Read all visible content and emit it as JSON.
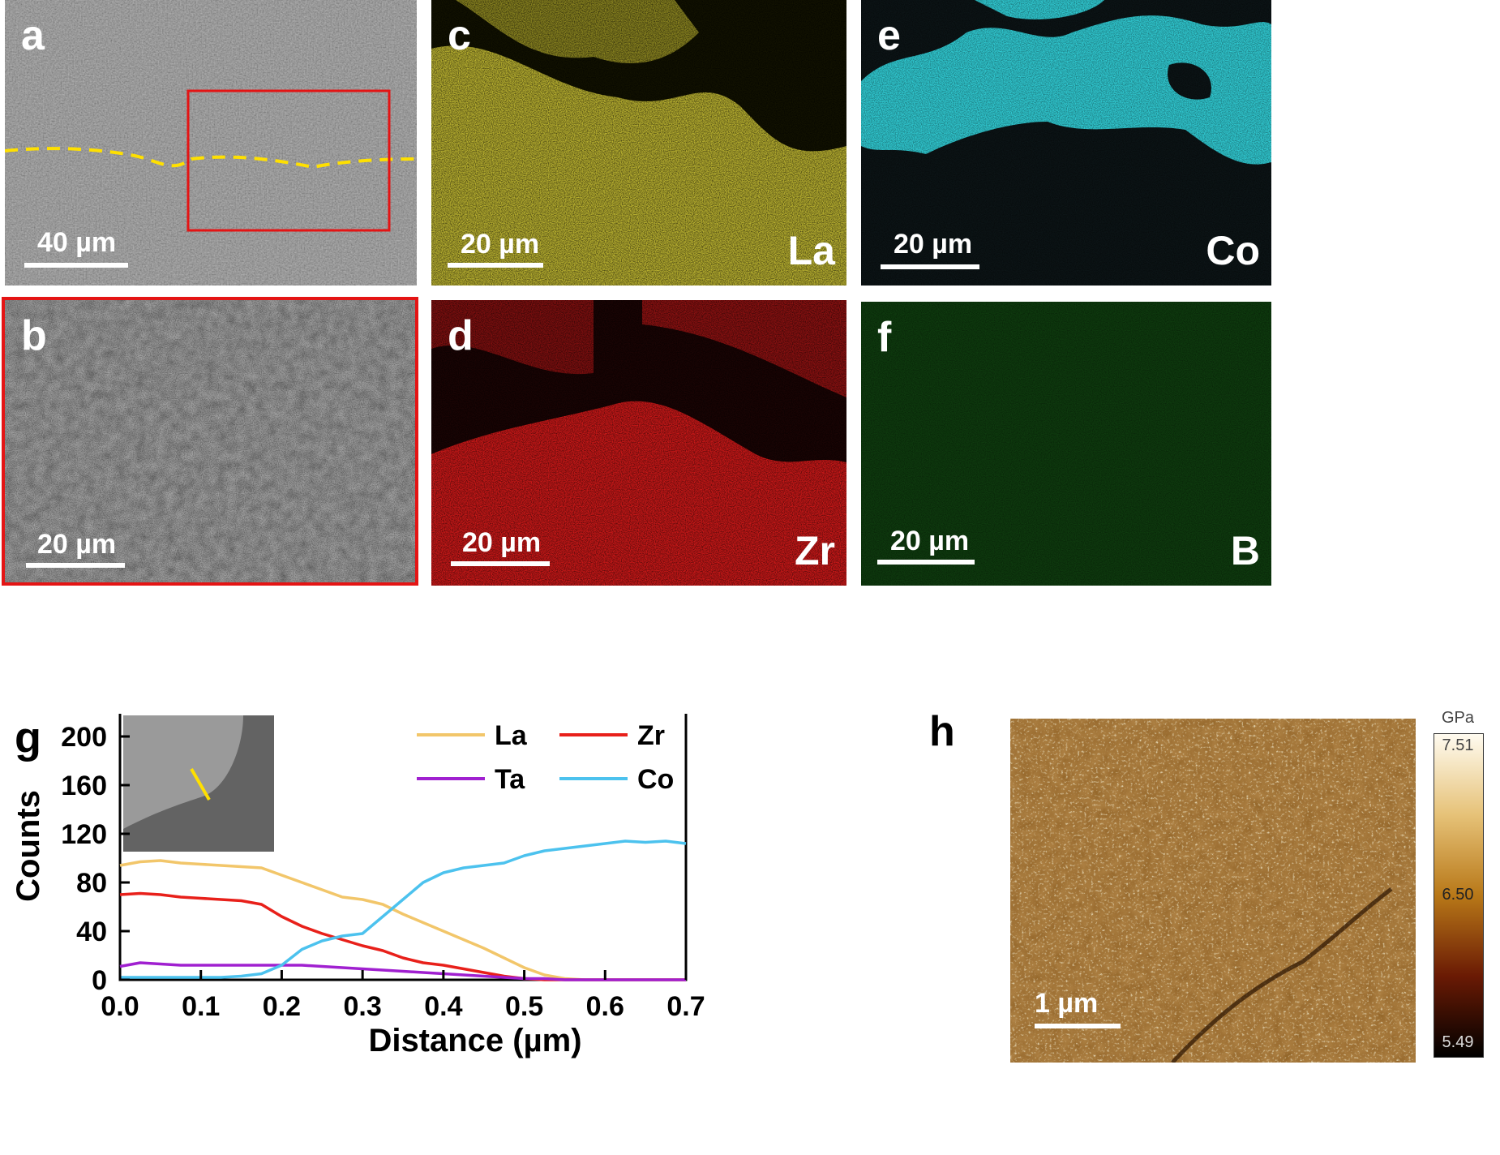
{
  "panels": {
    "a": {
      "label": "a",
      "scalebar": "40 µm"
    },
    "b": {
      "label": "b",
      "scalebar": "20 µm"
    },
    "c": {
      "label": "c",
      "scalebar": "20 µm",
      "element": "La",
      "color": "#d8d040"
    },
    "d": {
      "label": "d",
      "scalebar": "20 µm",
      "element": "Zr",
      "color": "#e02020"
    },
    "e": {
      "label": "e",
      "scalebar": "20 µm",
      "element": "Co",
      "color": "#30d8e0"
    },
    "f": {
      "label": "f",
      "scalebar": "20 µm",
      "element": "B",
      "color": "#1a8a1a"
    },
    "g": {
      "label": "g"
    },
    "h": {
      "label": "h",
      "scalebar": "1 µm",
      "colorbar": {
        "unit": "GPa",
        "max": "7.51",
        "mid": "6.50",
        "min": "5.49"
      }
    }
  },
  "chart_data": {
    "type": "line",
    "xlabel": "Distance (µm)",
    "ylabel": "Counts",
    "xlim": [
      0.0,
      0.7
    ],
    "ylim": [
      0,
      220
    ],
    "xticks": [
      "0.0",
      "0.1",
      "0.2",
      "0.3",
      "0.4",
      "0.5",
      "0.6",
      "0.7"
    ],
    "yticks": [
      "0",
      "40",
      "80",
      "120",
      "160",
      "200"
    ],
    "legend_position": "top-right",
    "x": [
      0.0,
      0.025,
      0.05,
      0.075,
      0.1,
      0.125,
      0.15,
      0.175,
      0.2,
      0.225,
      0.25,
      0.275,
      0.3,
      0.325,
      0.35,
      0.375,
      0.4,
      0.425,
      0.45,
      0.475,
      0.5,
      0.525,
      0.55,
      0.575,
      0.6,
      0.625,
      0.65,
      0.675,
      0.7
    ],
    "series": [
      {
        "name": "La",
        "color": "#f2c66a",
        "values": [
          94,
          97,
          98,
          96,
          95,
          94,
          93,
          92,
          86,
          80,
          74,
          68,
          66,
          62,
          54,
          47,
          40,
          33,
          26,
          18,
          10,
          4,
          1,
          0,
          0,
          0,
          0,
          0,
          0
        ]
      },
      {
        "name": "Zr",
        "color": "#e8201a",
        "values": [
          70,
          71,
          70,
          68,
          67,
          66,
          65,
          62,
          52,
          44,
          38,
          33,
          28,
          24,
          18,
          14,
          12,
          9,
          6,
          3,
          1,
          0,
          0,
          0,
          0,
          0,
          0,
          0,
          0
        ]
      },
      {
        "name": "Ta",
        "color": "#a020d0",
        "values": [
          11,
          14,
          13,
          12,
          12,
          12,
          12,
          12,
          12,
          12,
          11,
          10,
          9,
          8,
          7,
          6,
          5,
          4,
          3,
          2,
          1,
          1,
          0,
          0,
          0,
          0,
          0,
          0,
          0
        ]
      },
      {
        "name": "Co",
        "color": "#4cc2ee",
        "values": [
          2,
          2,
          2,
          2,
          2,
          2,
          3,
          5,
          12,
          25,
          32,
          36,
          38,
          52,
          66,
          80,
          88,
          92,
          94,
          96,
          102,
          106,
          108,
          110,
          112,
          114,
          113,
          114,
          112
        ]
      }
    ]
  }
}
